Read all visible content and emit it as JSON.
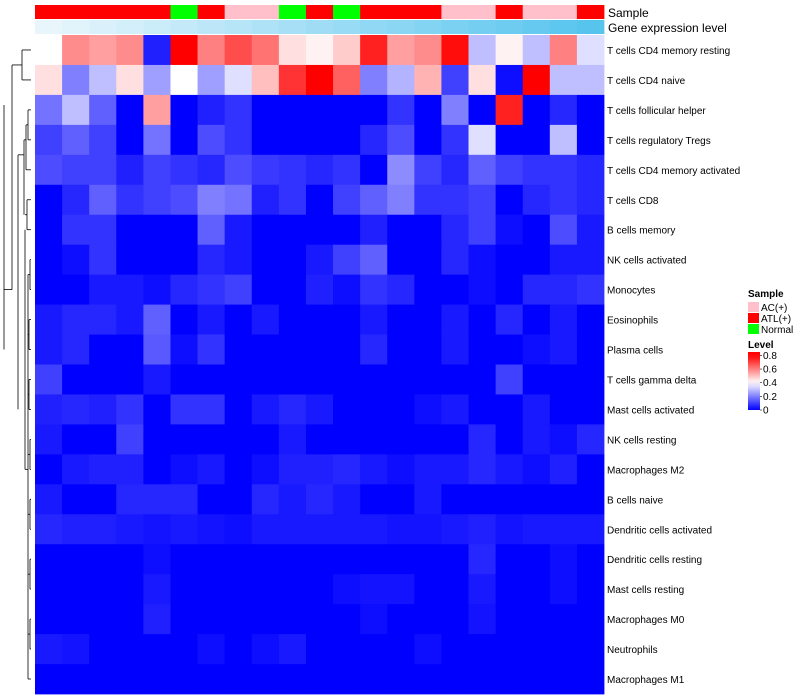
{
  "chart_data": {
    "type": "heatmap",
    "annotation_rows": [
      "Sample",
      "Gene expression level"
    ],
    "sample_groups": [
      "ATL(+)",
      "ATL(+)",
      "ATL(+)",
      "ATL(+)",
      "ATL(+)",
      "Normal",
      "ATL(+)",
      "AC(+)",
      "AC(+)",
      "Normal",
      "ATL(+)",
      "Normal",
      "ATL(+)",
      "ATL(+)",
      "ATL(+)",
      "AC(+)",
      "AC(+)",
      "ATL(+)",
      "AC(+)",
      "AC(+)",
      "ATL(+)"
    ],
    "expression_levels": [
      0.0,
      0.05,
      0.1,
      0.15,
      0.2,
      0.25,
      0.3,
      0.35,
      0.4,
      0.45,
      0.5,
      0.55,
      0.6,
      0.65,
      0.7,
      0.75,
      0.8,
      0.85,
      0.9,
      0.95,
      1.0
    ],
    "rows": [
      "T cells CD4 memory resting",
      "T cells CD4 naive",
      "T cells follicular helper",
      "T cells regulatory  Tregs",
      "T cells CD4 memory activated",
      "T cells CD8",
      "B cells memory",
      "NK cells activated",
      "Monocytes",
      "Eosinophils",
      "Plasma cells",
      "T cells gamma delta",
      "Mast cells activated",
      "NK cells resting",
      "Macrophages M2",
      "B cells naive",
      "Dendritic cells activated",
      "Dendritic cells resting",
      "Mast cells resting",
      "Macrophages M0",
      "Neutrophils",
      "Macrophages M1"
    ],
    "values": [
      [
        0.4,
        0.58,
        0.55,
        0.58,
        0.05,
        0.8,
        0.6,
        0.68,
        0.62,
        0.45,
        0.42,
        0.48,
        0.75,
        0.55,
        0.58,
        0.78,
        0.3,
        0.42,
        0.3,
        0.6,
        0.35
      ],
      [
        0.45,
        0.2,
        0.3,
        0.45,
        0.25,
        0.4,
        0.25,
        0.35,
        0.5,
        0.72,
        0.8,
        0.65,
        0.2,
        0.28,
        0.52,
        0.1,
        0.45,
        0.02,
        0.8,
        0.3,
        0.3
      ],
      [
        0.18,
        0.3,
        0.15,
        0.0,
        0.55,
        0.0,
        0.05,
        0.08,
        0.0,
        0.0,
        0.0,
        0.0,
        0.0,
        0.08,
        0.0,
        0.2,
        0.0,
        0.75,
        0.0,
        0.06,
        0.0
      ],
      [
        0.1,
        0.15,
        0.1,
        0.0,
        0.18,
        0.0,
        0.12,
        0.08,
        0.0,
        0.0,
        0.0,
        0.0,
        0.06,
        0.12,
        0.0,
        0.08,
        0.35,
        0.0,
        0.0,
        0.3,
        0.0
      ],
      [
        0.12,
        0.1,
        0.1,
        0.05,
        0.1,
        0.08,
        0.06,
        0.12,
        0.09,
        0.08,
        0.06,
        0.08,
        0.0,
        0.22,
        0.1,
        0.06,
        0.15,
        0.1,
        0.08,
        0.08,
        0.06
      ],
      [
        0.0,
        0.06,
        0.15,
        0.08,
        0.1,
        0.12,
        0.2,
        0.18,
        0.05,
        0.08,
        0.0,
        0.1,
        0.15,
        0.2,
        0.08,
        0.08,
        0.1,
        0.0,
        0.06,
        0.08,
        0.06
      ],
      [
        0.0,
        0.08,
        0.08,
        0.0,
        0.0,
        0.0,
        0.15,
        0.04,
        0.0,
        0.0,
        0.0,
        0.0,
        0.05,
        0.0,
        0.0,
        0.06,
        0.1,
        0.02,
        0.0,
        0.12,
        0.04
      ],
      [
        0.0,
        0.02,
        0.08,
        0.0,
        0.0,
        0.0,
        0.06,
        0.04,
        0.0,
        0.0,
        0.04,
        0.1,
        0.15,
        0.0,
        0.0,
        0.06,
        0.02,
        0.0,
        0.0,
        0.04,
        0.04
      ],
      [
        0.0,
        0.0,
        0.04,
        0.04,
        0.02,
        0.06,
        0.08,
        0.1,
        0.0,
        0.0,
        0.05,
        0.02,
        0.08,
        0.06,
        0.0,
        0.0,
        0.02,
        0.0,
        0.06,
        0.06,
        0.08
      ],
      [
        0.04,
        0.06,
        0.06,
        0.04,
        0.15,
        0.0,
        0.04,
        0.0,
        0.04,
        0.0,
        0.0,
        0.0,
        0.04,
        0.0,
        0.0,
        0.04,
        0.0,
        0.06,
        0.0,
        0.04,
        0.0
      ],
      [
        0.04,
        0.06,
        0.0,
        0.0,
        0.14,
        0.02,
        0.08,
        0.0,
        0.0,
        0.0,
        0.0,
        0.0,
        0.06,
        0.0,
        0.0,
        0.04,
        0.0,
        0.0,
        0.02,
        0.04,
        0.0
      ],
      [
        0.1,
        0.0,
        0.0,
        0.0,
        0.04,
        0.0,
        0.0,
        0.0,
        0.0,
        0.0,
        0.0,
        0.0,
        0.0,
        0.0,
        0.0,
        0.0,
        0.0,
        0.1,
        0.0,
        0.0,
        0.0
      ],
      [
        0.05,
        0.06,
        0.05,
        0.08,
        0.0,
        0.08,
        0.08,
        0.0,
        0.04,
        0.06,
        0.04,
        0.0,
        0.0,
        0.0,
        0.02,
        0.04,
        0.0,
        0.0,
        0.04,
        0.0,
        0.0
      ],
      [
        0.04,
        0.0,
        0.0,
        0.1,
        0.0,
        0.0,
        0.0,
        0.0,
        0.0,
        0.04,
        0.0,
        0.0,
        0.0,
        0.0,
        0.0,
        0.0,
        0.06,
        0.0,
        0.04,
        0.02,
        0.06
      ],
      [
        0.0,
        0.04,
        0.05,
        0.05,
        0.0,
        0.02,
        0.04,
        0.0,
        0.02,
        0.05,
        0.05,
        0.06,
        0.04,
        0.02,
        0.04,
        0.04,
        0.06,
        0.04,
        0.02,
        0.05,
        0.0
      ],
      [
        0.04,
        0.0,
        0.0,
        0.06,
        0.06,
        0.06,
        0.0,
        0.0,
        0.06,
        0.04,
        0.06,
        0.04,
        0.0,
        0.0,
        0.04,
        0.0,
        0.0,
        0.0,
        0.0,
        0.0,
        0.0
      ],
      [
        0.06,
        0.05,
        0.05,
        0.04,
        0.03,
        0.04,
        0.03,
        0.02,
        0.04,
        0.04,
        0.04,
        0.04,
        0.04,
        0.03,
        0.03,
        0.04,
        0.05,
        0.03,
        0.04,
        0.04,
        0.04
      ],
      [
        0.0,
        0.0,
        0.0,
        0.0,
        0.02,
        0.0,
        0.0,
        0.0,
        0.0,
        0.0,
        0.0,
        0.0,
        0.0,
        0.0,
        0.0,
        0.0,
        0.06,
        0.0,
        0.0,
        0.02,
        0.0
      ],
      [
        0.0,
        0.0,
        0.0,
        0.0,
        0.04,
        0.0,
        0.0,
        0.0,
        0.0,
        0.0,
        0.0,
        0.02,
        0.03,
        0.03,
        0.0,
        0.0,
        0.04,
        0.0,
        0.0,
        0.02,
        0.0
      ],
      [
        0.0,
        0.0,
        0.0,
        0.0,
        0.05,
        0.0,
        0.0,
        0.0,
        0.0,
        0.0,
        0.0,
        0.0,
        0.02,
        0.0,
        0.0,
        0.0,
        0.03,
        0.0,
        0.0,
        0.0,
        0.0
      ],
      [
        0.04,
        0.03,
        0.0,
        0.0,
        0.0,
        0.0,
        0.02,
        0.0,
        0.02,
        0.04,
        0.0,
        0.0,
        0.0,
        0.0,
        0.02,
        0.0,
        0.0,
        0.0,
        0.0,
        0.0,
        0.0
      ],
      [
        0.0,
        0.0,
        0.0,
        0.0,
        0.0,
        0.0,
        0.0,
        0.0,
        0.0,
        0.0,
        0.0,
        0.0,
        0.0,
        0.0,
        0.0,
        0.0,
        0.0,
        0.0,
        0.0,
        0.0,
        0.0
      ]
    ],
    "legend": {
      "sample_title": "Sample",
      "sample_items": [
        {
          "label": "AC(+)",
          "color": "#ffc0cb"
        },
        {
          "label": "ATL(+)",
          "color": "#ff0000"
        },
        {
          "label": "Normal",
          "color": "#00ff00"
        }
      ],
      "level_title": "Level",
      "level_ticks": [
        "0.8",
        "0.6",
        "0.4",
        "0.2",
        "0"
      ],
      "level_tick_values": [
        0.8,
        0.6,
        0.4,
        0.2,
        0.0
      ],
      "level_range": [
        0,
        0.85
      ]
    },
    "colorscale": {
      "low": "#0000ff",
      "mid": "#ffffff",
      "high": "#ff0000",
      "domain": [
        0,
        0.8
      ]
    },
    "annotation_colors": {
      "expression_low": "#e8f6fc",
      "expression_high": "#57c4ee"
    },
    "dendrogram": "hierarchical clustering (rows)"
  }
}
